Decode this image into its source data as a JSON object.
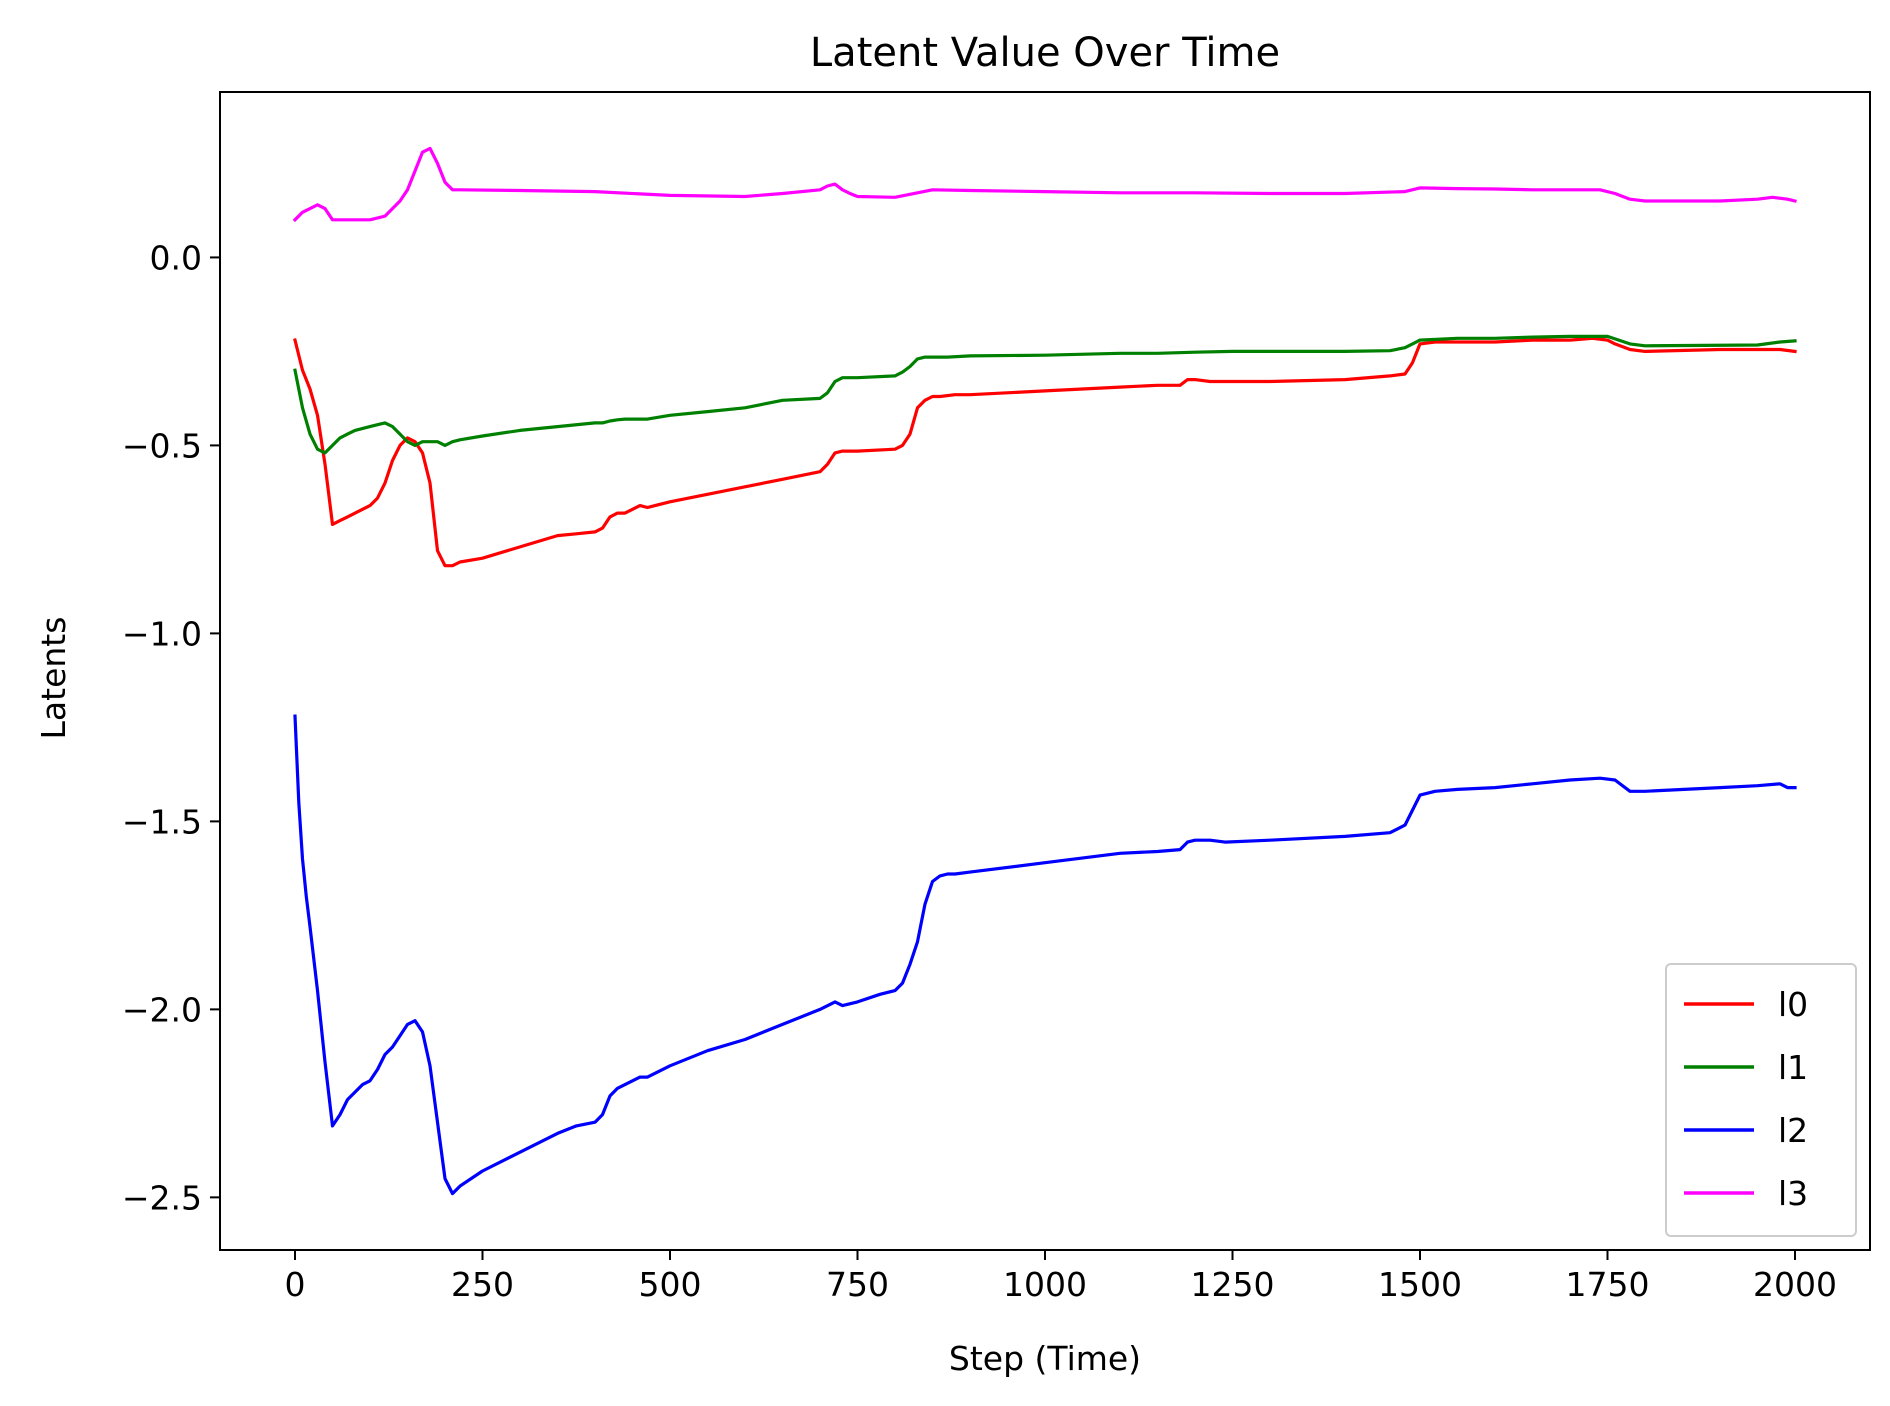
{
  "chart_data": {
    "type": "line",
    "title": "Latent Value Over Time",
    "xlabel": "Step (Time)",
    "ylabel": "Latents",
    "xlim": [
      -100,
      2100
    ],
    "ylim": [
      -2.64,
      0.44
    ],
    "x_ticks": [
      0,
      250,
      500,
      750,
      1000,
      1250,
      1500,
      1750,
      2000
    ],
    "x_tick_labels": [
      "0",
      "250",
      "500",
      "750",
      "1000",
      "1250",
      "1500",
      "1750",
      "2000"
    ],
    "y_ticks": [
      0.0,
      -0.5,
      -1.0,
      -1.5,
      -2.0,
      -2.5
    ],
    "y_tick_labels": [
      "0.0",
      "−0.5",
      "−1.0",
      "−1.5",
      "−2.0",
      "−2.5"
    ],
    "grid": false,
    "legend_position": "lower-right",
    "series": [
      {
        "name": "l0",
        "color": "#ff0000",
        "x": [
          0,
          10,
          20,
          30,
          40,
          50,
          60,
          70,
          90,
          100,
          110,
          120,
          130,
          140,
          150,
          160,
          170,
          180,
          190,
          200,
          210,
          220,
          250,
          300,
          350,
          375,
          400,
          410,
          420,
          430,
          440,
          450,
          460,
          470,
          480,
          500,
          550,
          600,
          650,
          700,
          710,
          720,
          730,
          740,
          750,
          800,
          810,
          820,
          830,
          840,
          850,
          860,
          880,
          900,
          1000,
          1100,
          1150,
          1180,
          1190,
          1200,
          1220,
          1240,
          1300,
          1400,
          1460,
          1480,
          1490,
          1500,
          1520,
          1550,
          1600,
          1650,
          1700,
          1730,
          1750,
          1760,
          1780,
          1800,
          1900,
          1950,
          1980,
          2000
        ],
        "y": [
          -0.22,
          -0.3,
          -0.35,
          -0.42,
          -0.55,
          -0.71,
          -0.7,
          -0.69,
          -0.67,
          -0.66,
          -0.64,
          -0.6,
          -0.54,
          -0.5,
          -0.48,
          -0.49,
          -0.52,
          -0.6,
          -0.78,
          -0.82,
          -0.82,
          -0.81,
          -0.8,
          -0.77,
          -0.74,
          -0.735,
          -0.73,
          -0.72,
          -0.69,
          -0.68,
          -0.68,
          -0.67,
          -0.66,
          -0.665,
          -0.66,
          -0.65,
          -0.63,
          -0.61,
          -0.59,
          -0.57,
          -0.55,
          -0.52,
          -0.515,
          -0.515,
          -0.515,
          -0.51,
          -0.5,
          -0.47,
          -0.4,
          -0.38,
          -0.37,
          -0.37,
          -0.365,
          -0.365,
          -0.355,
          -0.345,
          -0.34,
          -0.34,
          -0.325,
          -0.325,
          -0.33,
          -0.33,
          -0.33,
          -0.325,
          -0.315,
          -0.31,
          -0.28,
          -0.23,
          -0.225,
          -0.225,
          -0.225,
          -0.22,
          -0.22,
          -0.215,
          -0.22,
          -0.23,
          -0.245,
          -0.25,
          -0.245,
          -0.245,
          -0.245,
          -0.25
        ]
      },
      {
        "name": "l1",
        "color": "#008000",
        "x": [
          0,
          10,
          20,
          30,
          40,
          50,
          60,
          70,
          80,
          100,
          110,
          120,
          130,
          140,
          150,
          160,
          170,
          180,
          190,
          200,
          210,
          220,
          250,
          300,
          350,
          400,
          410,
          420,
          430,
          440,
          450,
          460,
          470,
          500,
          550,
          600,
          650,
          700,
          710,
          720,
          730,
          740,
          750,
          800,
          810,
          820,
          830,
          840,
          850,
          870,
          900,
          1000,
          1100,
          1150,
          1200,
          1250,
          1300,
          1400,
          1460,
          1480,
          1490,
          1500,
          1550,
          1600,
          1650,
          1700,
          1750,
          1780,
          1800,
          1950,
          1980,
          2000
        ],
        "y": [
          -0.3,
          -0.4,
          -0.47,
          -0.51,
          -0.52,
          -0.5,
          -0.48,
          -0.47,
          -0.46,
          -0.45,
          -0.445,
          -0.44,
          -0.45,
          -0.47,
          -0.49,
          -0.5,
          -0.49,
          -0.49,
          -0.49,
          -0.5,
          -0.49,
          -0.485,
          -0.475,
          -0.46,
          -0.45,
          -0.44,
          -0.44,
          -0.435,
          -0.432,
          -0.43,
          -0.43,
          -0.43,
          -0.43,
          -0.42,
          -0.41,
          -0.4,
          -0.38,
          -0.375,
          -0.36,
          -0.33,
          -0.32,
          -0.32,
          -0.32,
          -0.315,
          -0.305,
          -0.29,
          -0.27,
          -0.265,
          -0.265,
          -0.265,
          -0.262,
          -0.26,
          -0.255,
          -0.255,
          -0.252,
          -0.25,
          -0.25,
          -0.25,
          -0.248,
          -0.24,
          -0.23,
          -0.22,
          -0.215,
          -0.215,
          -0.212,
          -0.21,
          -0.21,
          -0.23,
          -0.235,
          -0.233,
          -0.225,
          -0.222
        ]
      },
      {
        "name": "l2",
        "color": "#0000ff",
        "x": [
          0,
          5,
          10,
          15,
          20,
          30,
          40,
          50,
          60,
          70,
          80,
          90,
          100,
          110,
          120,
          130,
          140,
          150,
          160,
          170,
          180,
          190,
          200,
          210,
          220,
          250,
          300,
          350,
          375,
          400,
          410,
          420,
          430,
          440,
          450,
          460,
          470,
          500,
          550,
          600,
          650,
          700,
          720,
          730,
          750,
          780,
          800,
          810,
          820,
          830,
          840,
          850,
          860,
          870,
          880,
          900,
          1000,
          1100,
          1150,
          1180,
          1190,
          1200,
          1220,
          1240,
          1300,
          1400,
          1460,
          1480,
          1490,
          1500,
          1520,
          1550,
          1600,
          1650,
          1700,
          1740,
          1760,
          1780,
          1800,
          1900,
          1950,
          1980,
          1990,
          2000
        ],
        "y": [
          -1.22,
          -1.45,
          -1.6,
          -1.7,
          -1.78,
          -1.95,
          -2.14,
          -2.31,
          -2.28,
          -2.24,
          -2.22,
          -2.2,
          -2.19,
          -2.16,
          -2.12,
          -2.1,
          -2.07,
          -2.04,
          -2.03,
          -2.06,
          -2.15,
          -2.3,
          -2.45,
          -2.49,
          -2.47,
          -2.43,
          -2.38,
          -2.33,
          -2.31,
          -2.3,
          -2.28,
          -2.23,
          -2.21,
          -2.2,
          -2.19,
          -2.18,
          -2.18,
          -2.15,
          -2.11,
          -2.08,
          -2.04,
          -2.0,
          -1.98,
          -1.99,
          -1.98,
          -1.96,
          -1.95,
          -1.93,
          -1.88,
          -1.82,
          -1.72,
          -1.66,
          -1.645,
          -1.64,
          -1.64,
          -1.635,
          -1.61,
          -1.585,
          -1.58,
          -1.575,
          -1.555,
          -1.55,
          -1.55,
          -1.555,
          -1.55,
          -1.54,
          -1.53,
          -1.51,
          -1.47,
          -1.43,
          -1.42,
          -1.415,
          -1.41,
          -1.4,
          -1.39,
          -1.385,
          -1.39,
          -1.42,
          -1.42,
          -1.41,
          -1.405,
          -1.4,
          -1.41,
          -1.41
        ]
      },
      {
        "name": "l3",
        "color": "#ff00ff",
        "x": [
          0,
          10,
          20,
          30,
          40,
          50,
          60,
          80,
          100,
          120,
          140,
          150,
          160,
          170,
          180,
          190,
          200,
          210,
          220,
          300,
          400,
          500,
          600,
          650,
          700,
          710,
          720,
          730,
          740,
          750,
          800,
          850,
          900,
          1000,
          1100,
          1200,
          1300,
          1400,
          1480,
          1500,
          1550,
          1600,
          1650,
          1700,
          1740,
          1760,
          1780,
          1800,
          1900,
          1950,
          1970,
          1990,
          2000
        ],
        "y": [
          0.1,
          0.12,
          0.13,
          0.14,
          0.13,
          0.1,
          0.1,
          0.1,
          0.1,
          0.11,
          0.15,
          0.18,
          0.23,
          0.28,
          0.29,
          0.25,
          0.2,
          0.18,
          0.18,
          0.178,
          0.175,
          0.165,
          0.162,
          0.17,
          0.18,
          0.19,
          0.195,
          0.18,
          0.17,
          0.162,
          0.16,
          0.18,
          0.178,
          0.175,
          0.172,
          0.172,
          0.17,
          0.17,
          0.175,
          0.185,
          0.183,
          0.182,
          0.18,
          0.18,
          0.18,
          0.17,
          0.155,
          0.15,
          0.15,
          0.155,
          0.16,
          0.155,
          0.15
        ]
      }
    ]
  }
}
